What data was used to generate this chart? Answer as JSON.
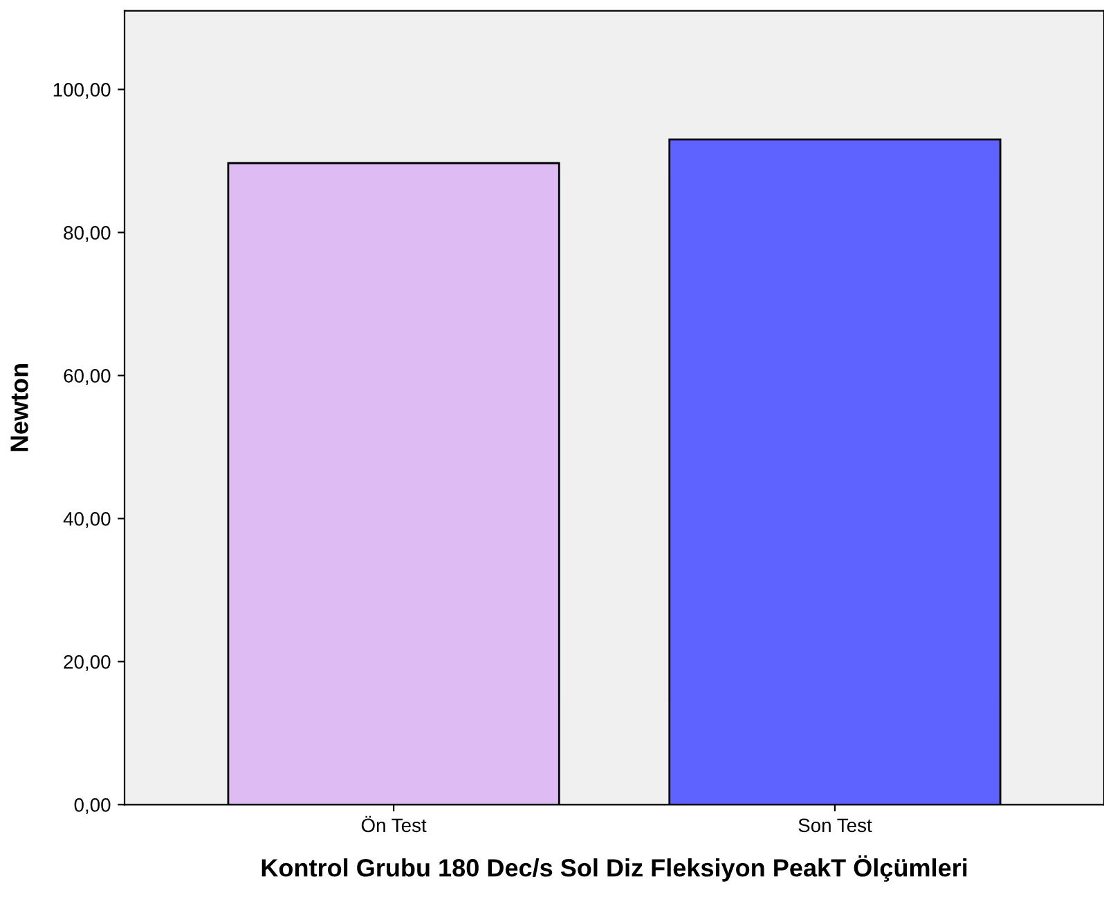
{
  "chart_data": {
    "type": "bar",
    "xlabel": "Kontrol Grubu 180 Dec/s Sol Diz Fleksiyon PeakT Ölçümleri",
    "ylabel": "Newton",
    "categories": [
      "Ön Test",
      "Son Test"
    ],
    "values": [
      89.7,
      93.0
    ],
    "colors": [
      "#dfbbf3",
      "#5e62ff"
    ],
    "ylim": [
      0,
      111
    ],
    "yticks": [
      {
        "value": 0,
        "label": "0,00"
      },
      {
        "value": 20,
        "label": "20,00"
      },
      {
        "value": 40,
        "label": "40,00"
      },
      {
        "value": 60,
        "label": "60,00"
      },
      {
        "value": 80,
        "label": "80,00"
      },
      {
        "value": 100,
        "label": "100,00"
      }
    ],
    "grid": false,
    "legend": false
  }
}
